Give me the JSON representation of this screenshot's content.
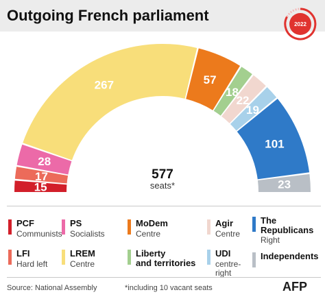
{
  "header": {
    "title": "Outgoing French parliament",
    "badge_year": "2022"
  },
  "chart_data": {
    "type": "pie",
    "subtype": "parliament-half-donut",
    "title": "Outgoing French parliament",
    "total_label": "577",
    "total_sub": "seats*",
    "order": "left-to-right",
    "segments": [
      {
        "label": "15",
        "value": 15,
        "color": "#d21f2a",
        "party": "PCF"
      },
      {
        "label": "17",
        "value": 17,
        "color": "#ec6b5a",
        "party": "LFI"
      },
      {
        "label": "28",
        "value": 28,
        "color": "#ec6aa8",
        "party": "PS"
      },
      {
        "label": "267",
        "value": 267,
        "color": "#f8de7a",
        "party": "LREM"
      },
      {
        "label": "57",
        "value": 57,
        "color": "#ec7a1c",
        "party": "MoDem"
      },
      {
        "label": "18",
        "value": 18,
        "color": "#a3cf8f",
        "party": "Liberty and territories"
      },
      {
        "label": "22",
        "value": 22,
        "color": "#f1d7cf",
        "party": "Agir"
      },
      {
        "label": "19",
        "value": 19,
        "color": "#a8d1ea",
        "party": "UDI"
      },
      {
        "label": "101",
        "value": 101,
        "color": "#2f7ac8",
        "party": "The Republicans"
      },
      {
        "label": "23",
        "value": 23,
        "color": "#b9bfc6",
        "party": "Independents"
      }
    ]
  },
  "legend": [
    {
      "name": "PCF",
      "desc": "Communists",
      "color": "#d21f2a"
    },
    {
      "name": "LFI",
      "desc": "Hard left",
      "color": "#ec6b5a"
    },
    {
      "name": "PS",
      "desc": "Socialists",
      "color": "#ec6aa8"
    },
    {
      "name": "LREM",
      "desc": "Centre",
      "color": "#f8de7a"
    },
    {
      "name": "MoDem",
      "desc": "Centre",
      "color": "#ec7a1c"
    },
    {
      "name_line1": "Liberty",
      "name_line2": "and territories",
      "color": "#a3cf8f"
    },
    {
      "name": "Agir",
      "desc": "Centre",
      "color": "#f1d7cf"
    },
    {
      "name": "UDI",
      "desc_line1": "centre-",
      "desc_line2": "right",
      "color": "#a8d1ea"
    },
    {
      "name_line1": "The",
      "name_line2": "Republicans",
      "desc": "Right",
      "color": "#2f7ac8"
    },
    {
      "name": "Independents",
      "color": "#b9bfc6"
    }
  ],
  "footer": {
    "source": "Source: National Assembly",
    "footnote": "*including 10 vacant seats",
    "logo": "AFP"
  }
}
